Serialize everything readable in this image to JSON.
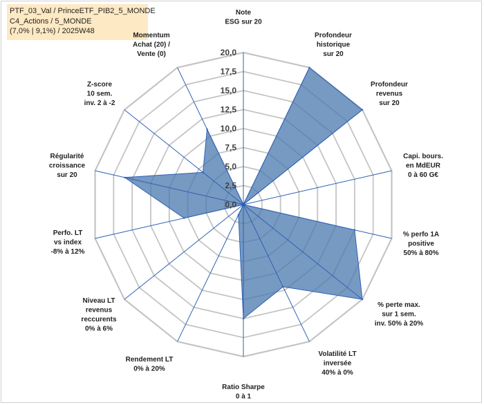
{
  "header": {
    "line1": "PTF_03_Val / PrinceETF_PIB2_5_MONDE",
    "line2": "C4_Actions / 5_MONDE",
    "line3": "(7,0% | 9,1%) / 2025W48"
  },
  "chart_data": {
    "type": "radar",
    "title": "",
    "rmax": 20,
    "ticks": [
      "0,0",
      "2,5",
      "5,0",
      "7,5",
      "10,0",
      "12,5",
      "15,0",
      "17,5",
      "20,0"
    ],
    "axes": [
      [
        "Note",
        "ESG sur 20"
      ],
      [
        "Profondeur",
        "historique",
        "sur 20"
      ],
      [
        "Profondeur",
        "revenus",
        "sur 20"
      ],
      [
        "Capi. bours.",
        "en MdEUR",
        "0 à 60 G€"
      ],
      [
        "% perfo 1A",
        "positive",
        "50% à 80%"
      ],
      [
        "% perte max.",
        "sur 1 sem.",
        "inv. 50% à 20%"
      ],
      [
        "Volatilité LT",
        "inversée",
        "40% à 0%"
      ],
      [
        "Ratio Sharpe",
        "0 à 1"
      ],
      [
        "Rendement LT",
        "0% à 20%"
      ],
      [
        "Niveau LT",
        "revenus",
        "reccurents",
        "0% à 6%"
      ],
      [
        "Perfo. LT",
        "vs index",
        "-8% à 12%"
      ],
      [
        "Régularité",
        "croissance",
        "sur 20"
      ],
      [
        "Z-score",
        "10 sem.",
        "inv. 2 à -2"
      ],
      [
        "Momentum",
        "Achat (20) /",
        "Vente (0)"
      ]
    ],
    "values": [
      0,
      20,
      20,
      0,
      15,
      20,
      12,
      15,
      1.5,
      0,
      8,
      16,
      6.8,
      11
    ],
    "fill_color": "#4a78ad",
    "axis_color": "#2f5fb3",
    "grid_color": "#c4c4c4"
  }
}
